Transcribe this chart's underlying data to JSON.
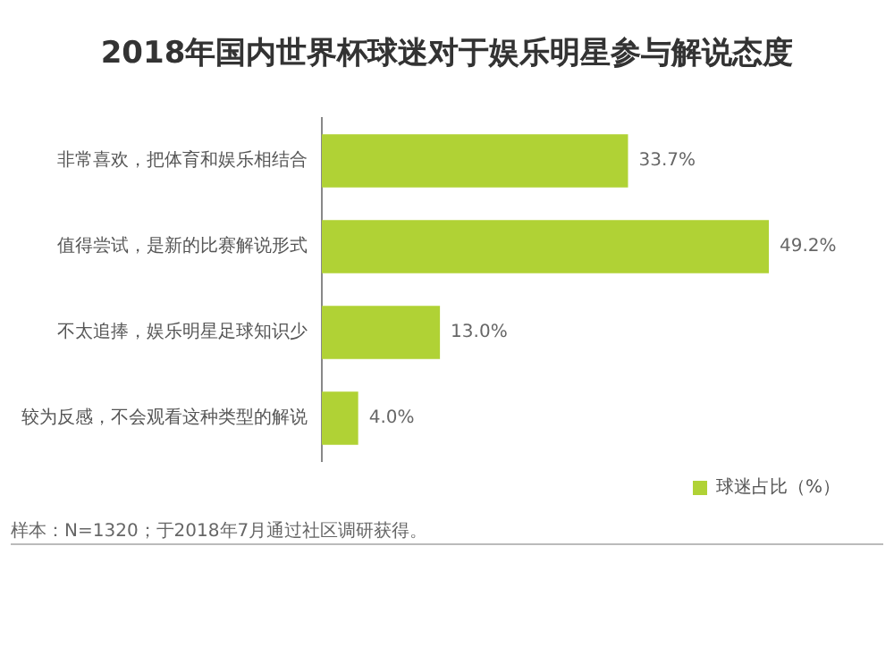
{
  "chart_data": {
    "type": "bar",
    "orientation": "horizontal",
    "title": "2018年国内世界杯球迷对于娱乐明星参与解说态度",
    "categories": [
      "非常喜欢，把体育和娱乐相结合",
      "值得尝试，是新的比赛解说形式",
      "不太追捧，娱乐明星足球知识少",
      "较为反感，不会观看这种类型的解说"
    ],
    "series": [
      {
        "name": "球迷占比（%）",
        "color": "#b0d235",
        "values": [
          33.7,
          49.2,
          13.0,
          4.0
        ],
        "value_labels": [
          "33.7%",
          "49.2%",
          "13.0%",
          "4.0%"
        ]
      }
    ],
    "legend": "bottom",
    "grid": false,
    "annotations": [
      "样本：N=1320；于2018年7月通过社区调研获得。"
    ]
  }
}
